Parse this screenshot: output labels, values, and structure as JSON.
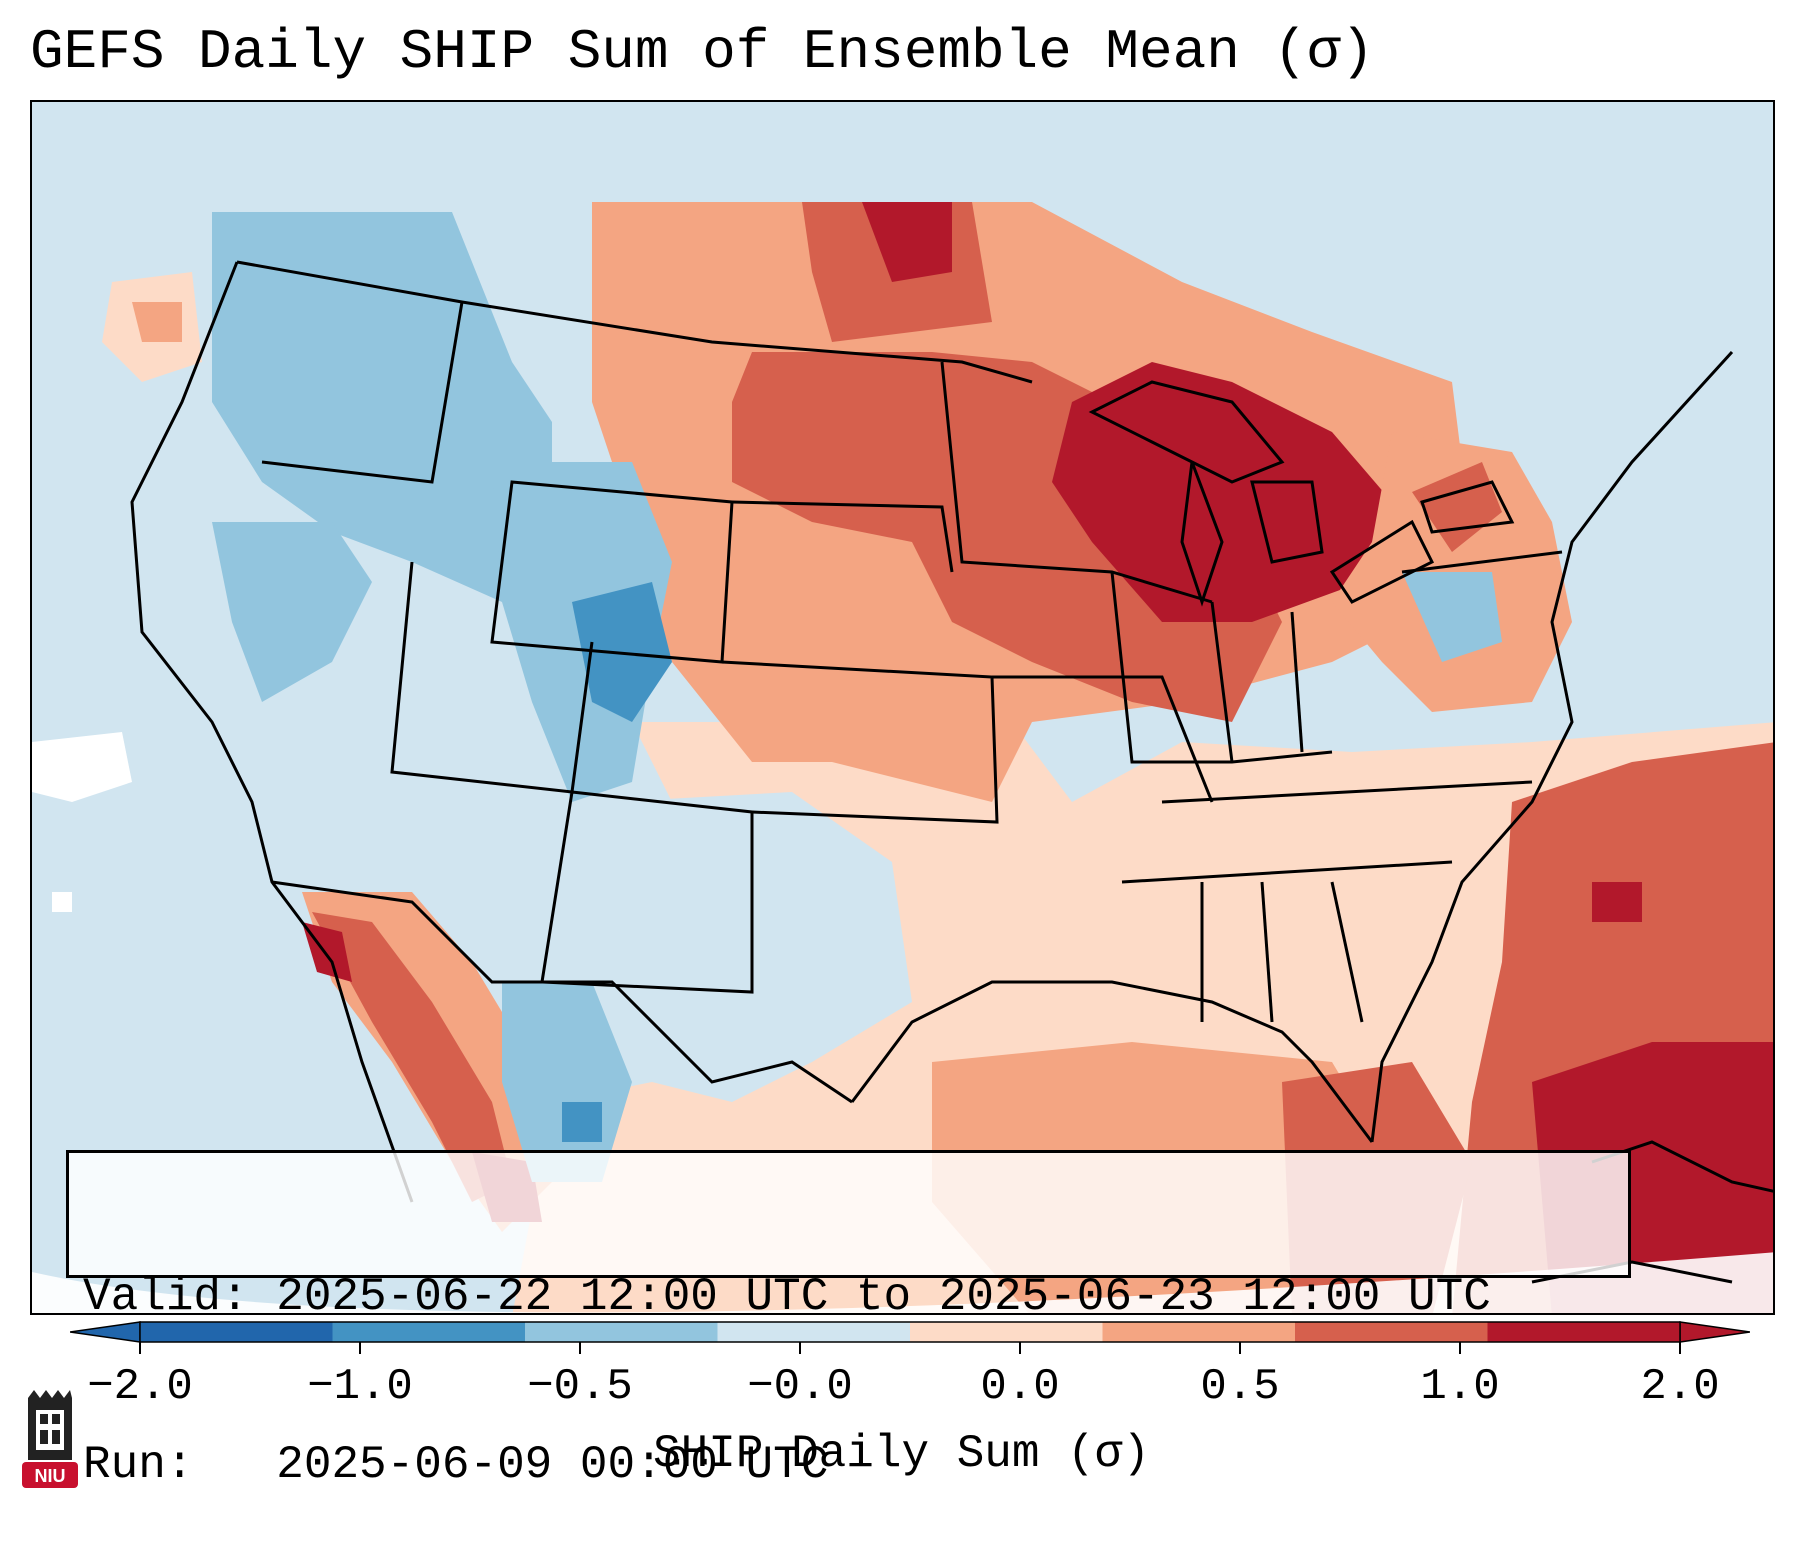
{
  "title": "GEFS Daily SHIP Sum of Ensemble Mean (σ)",
  "info": {
    "valid_line": "Valid: 2025-06-22 12:00 UTC to 2025-06-23 12:00 UTC",
    "run_line": "Run:   2025-06-09 00:00 UTC"
  },
  "colorbar": {
    "label": "SHIP Daily Sum (σ)",
    "ticks": [
      "−2.0",
      "−1.0",
      "−0.5",
      "−0.0",
      "0.0",
      "0.5",
      "1.0",
      "2.0"
    ],
    "colors": [
      "#2166ac",
      "#4393c3",
      "#92c5de",
      "#d1e5f0",
      "#fddbc7",
      "#f4a582",
      "#d6604d",
      "#b2182b"
    ],
    "extend": "both"
  },
  "logo": {
    "text": "NIU",
    "color": "#c8102e"
  },
  "map": {
    "type": "anomaly-map",
    "region": "Continental United States",
    "positive_anomaly_color": "#b2182b",
    "negative_anomaly_color": "#4393c3"
  }
}
